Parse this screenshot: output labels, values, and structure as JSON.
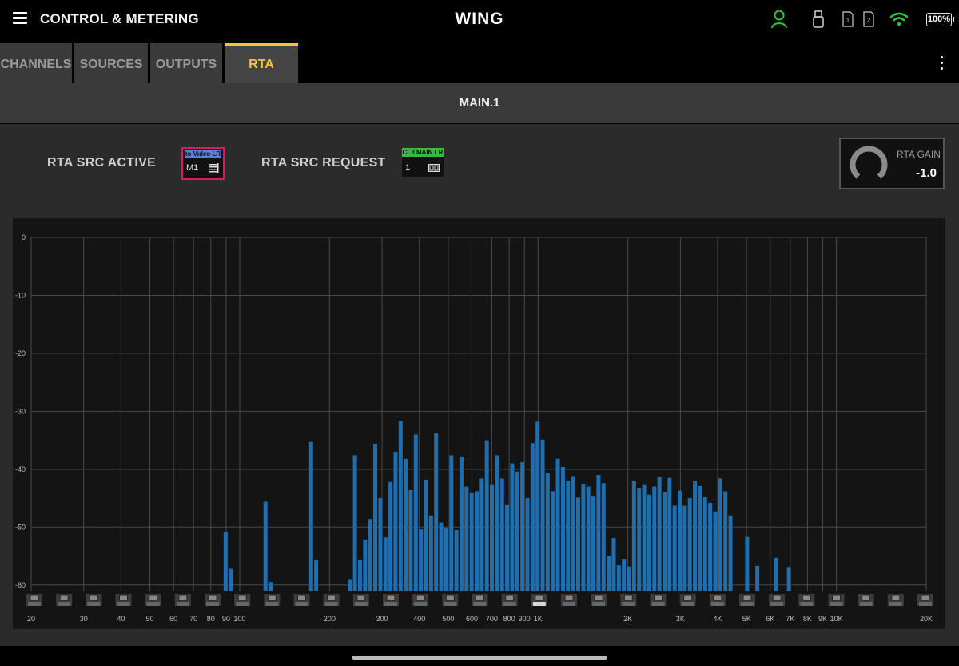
{
  "header": {
    "menu_icon": "hamburger-menu-icon",
    "title": "CONTROL & METERING",
    "brand": "WING",
    "status_icons": [
      "user-icon",
      "usb-icon",
      "card-1-icon",
      "card-2-icon",
      "wifi-icon"
    ],
    "card1_label": "1",
    "card2_label": "2",
    "battery": "100%",
    "colors": {
      "user": "#2fbf3a",
      "wifi": "#2fbf3a"
    }
  },
  "tabs": [
    {
      "label": "CHANNELS",
      "active": false
    },
    {
      "label": "SOURCES",
      "active": false
    },
    {
      "label": "OUTPUTS",
      "active": false
    },
    {
      "label": "RTA",
      "active": true
    }
  ],
  "accent": "#f5c242",
  "section": {
    "title": "MAIN.1"
  },
  "rta_src_active": {
    "label": "RTA SRC ACTIVE",
    "tag": "to Video LR",
    "channel": "M1",
    "tag_color": "#5b7fd6",
    "border_color": "#d81b60"
  },
  "rta_src_request": {
    "label": "RTA SRC REQUEST",
    "tag": "CL3 MAIN LR",
    "channel": "1",
    "tag_color": "#2fbf3a"
  },
  "rta_gain": {
    "label": "RTA GAIN",
    "value": "-1.0"
  },
  "chart_data": {
    "type": "bar",
    "title": "",
    "xlabel": "",
    "ylabel": "",
    "x_scale": "log",
    "xlim": [
      20,
      20000
    ],
    "ylim": [
      -61,
      0
    ],
    "grid": true,
    "bar_color": "#1e6fb0",
    "y_ticks": [
      0,
      -10,
      -20,
      -30,
      -40,
      -50,
      -60
    ],
    "x_tick_labels": [
      "20",
      "30",
      "40",
      "50",
      "60",
      "70",
      "80",
      "90",
      "100",
      "200",
      "300",
      "400",
      "500",
      "600",
      "700",
      "800",
      "900",
      "1K",
      "2K",
      "3K",
      "4K",
      "5K",
      "6K",
      "7K",
      "8K",
      "9K",
      "10K",
      "20K"
    ],
    "x_tick_values": [
      20,
      30,
      40,
      50,
      60,
      70,
      80,
      90,
      100,
      200,
      300,
      400,
      500,
      600,
      700,
      800,
      900,
      1000,
      2000,
      3000,
      4000,
      5000,
      6000,
      7000,
      8000,
      9000,
      10000,
      20000
    ],
    "series": [
      {
        "freqs": [
          89.7,
          93.3,
          122,
          126.8,
          173.5,
          180.4,
          234,
          243.3,
          253,
          263.2,
          273.7,
          284.6,
          296,
          307.8,
          320.1,
          332.9,
          346.2,
          360,
          374.3,
          389.3,
          404.8,
          421,
          437.8,
          455.3,
          473.4,
          492.3,
          512,
          532.5,
          553.7,
          575.8,
          598.8,
          622.7,
          647.6,
          673.5,
          700.4,
          728.4,
          757.5,
          787.7,
          819.1,
          851.9,
          885.9,
          921.2,
          958,
          996.3,
          1036,
          1077,
          1121,
          1165,
          1212,
          1260,
          1311,
          1363,
          1418,
          1474,
          1533,
          1594,
          1658,
          1724,
          1793,
          1865,
          1939,
          2017,
          2097,
          2181,
          2268,
          2359,
          2453,
          2551,
          2653,
          2759,
          2869,
          2984,
          3103,
          3227,
          3356,
          3490,
          3629,
          3774,
          3925,
          4082,
          4245,
          4415,
          5020,
          5430,
          6270,
          6930
        ],
        "values": [
          -50.8,
          -57.2,
          -45.6,
          -59.5,
          -35.3,
          -55.6,
          -59.0,
          -37.6,
          -55.6,
          -52.2,
          -48.6,
          -35.6,
          -45.0,
          -51.8,
          -42.2,
          -37.0,
          -31.6,
          -38.2,
          -43.6,
          -34.0,
          -50.4,
          -41.8,
          -48.0,
          -33.8,
          -49.2,
          -50.2,
          -37.6,
          -50.5,
          -37.8,
          -43.0,
          -44.0,
          -43.8,
          -41.6,
          -35.0,
          -42.6,
          -37.6,
          -41.6,
          -46.2,
          -39.0,
          -40.4,
          -38.8,
          -45.0,
          -35.5,
          -31.8,
          -34.9,
          -40.6,
          -43.8,
          -38.2,
          -39.6,
          -42.0,
          -41.2,
          -44.9,
          -42.5,
          -43.0,
          -44.6,
          -41.0,
          -42.4,
          -55.0,
          -51.9,
          -56.6,
          -55.5,
          -56.8,
          -42.0,
          -43.2,
          -42.6,
          -44.4,
          -43.0,
          -41.3,
          -43.9,
          -41.5,
          -46.3,
          -43.7,
          -46.3,
          -45.0,
          -42.1,
          -42.9,
          -44.8,
          -45.8,
          -47.3,
          -41.6,
          -43.8,
          -48.0,
          -51.7,
          -56.7,
          -55.3,
          -56.9
        ]
      }
    ],
    "fader_knob_index": 17
  }
}
